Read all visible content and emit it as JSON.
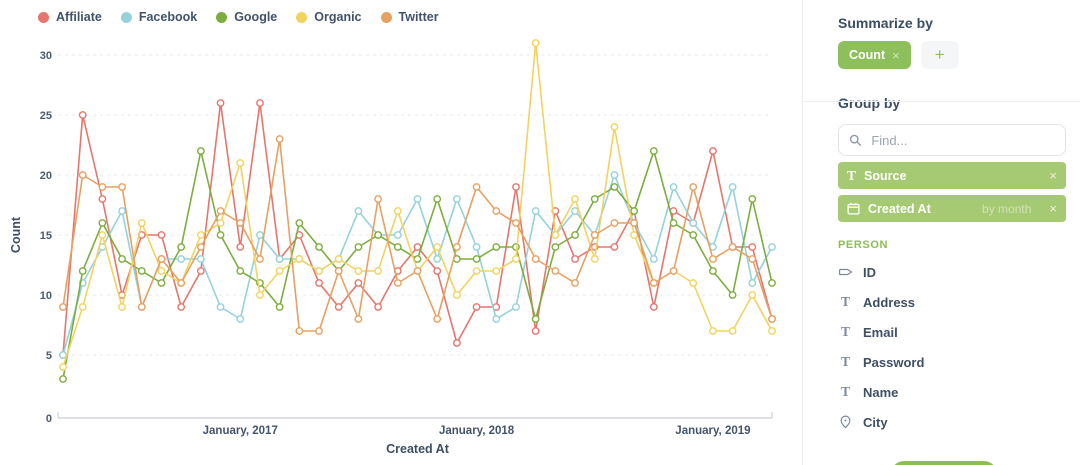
{
  "colors": {
    "accent_green": "#8dc05b",
    "row_green": "#a6c974",
    "navy": "#3e4f63",
    "grid": "#e8e8ea",
    "axis": "#c9ced6"
  },
  "legend": [
    {
      "label": "Affiliate",
      "color": "#e4776d"
    },
    {
      "label": "Facebook",
      "color": "#96d1dc"
    },
    {
      "label": "Google",
      "color": "#7cad3e"
    },
    {
      "label": "Organic",
      "color": "#f2d360"
    },
    {
      "label": "Twitter",
      "color": "#e5a163"
    }
  ],
  "chart_data": {
    "type": "line",
    "title": "",
    "xlabel": "Created At",
    "ylabel": "Count",
    "ylim": [
      0,
      32
    ],
    "yticks": [
      0,
      5,
      10,
      15,
      20,
      25,
      30
    ],
    "grid": "dashed-horizontal",
    "legend_position": "top-left",
    "marker": "open-circle",
    "x": [
      "Apr 2016",
      "May 2016",
      "Jun 2016",
      "Jul 2016",
      "Aug 2016",
      "Sep 2016",
      "Oct 2016",
      "Nov 2016",
      "Dec 2016",
      "Jan 2017",
      "Feb 2017",
      "Mar 2017",
      "Apr 2017",
      "May 2017",
      "Jun 2017",
      "Jul 2017",
      "Aug 2017",
      "Sep 2017",
      "Oct 2017",
      "Nov 2017",
      "Dec 2017",
      "Jan 2018",
      "Feb 2018",
      "Mar 2018",
      "Apr 2018",
      "May 2018",
      "Jun 2018",
      "Jul 2018",
      "Aug 2018",
      "Sep 2018",
      "Oct 2018",
      "Nov 2018",
      "Dec 2018",
      "Jan 2019",
      "Feb 2019",
      "Mar 2019",
      "Apr 2019"
    ],
    "x_ticks": [
      {
        "index": 9,
        "label": "January, 2017"
      },
      {
        "index": 21,
        "label": "January, 2018"
      },
      {
        "index": 33,
        "label": "January, 2019"
      }
    ],
    "series": [
      {
        "name": "Affiliate",
        "color": "#e4776d",
        "values": [
          5,
          25,
          18,
          10,
          15,
          15,
          9,
          12,
          26,
          14,
          26,
          13,
          15,
          11,
          9,
          11,
          9,
          12,
          14,
          12,
          6,
          9,
          9,
          19,
          7,
          17,
          13,
          14,
          14,
          17,
          9,
          17,
          16,
          22,
          14,
          14,
          8
        ]
      },
      {
        "name": "Facebook",
        "color": "#96d1dc",
        "values": [
          5,
          11,
          14,
          17,
          9,
          13,
          13,
          13,
          9,
          8,
          15,
          13,
          13,
          12,
          13,
          17,
          15,
          15,
          18,
          13,
          18,
          14,
          8,
          9,
          17,
          15,
          17,
          15,
          20,
          16,
          13,
          19,
          16,
          14,
          19,
          11,
          14
        ]
      },
      {
        "name": "Google",
        "color": "#7cad3e",
        "values": [
          3,
          12,
          16,
          13,
          12,
          11,
          14,
          22,
          15,
          12,
          11,
          9,
          16,
          14,
          12,
          14,
          15,
          14,
          13,
          18,
          13,
          13,
          14,
          14,
          8,
          14,
          15,
          18,
          19,
          17,
          22,
          16,
          15,
          12,
          10,
          18,
          11
        ]
      },
      {
        "name": "Organic",
        "color": "#f2d360",
        "values": [
          4,
          9,
          15,
          9,
          16,
          12,
          11,
          15,
          16,
          21,
          10,
          12,
          13,
          12,
          13,
          12,
          12,
          17,
          12,
          14,
          10,
          12,
          12,
          13,
          31,
          15,
          18,
          13,
          24,
          15,
          11,
          12,
          11,
          7,
          7,
          10,
          7
        ]
      },
      {
        "name": "Twitter",
        "color": "#e5a163",
        "values": [
          9,
          20,
          19,
          19,
          9,
          13,
          11,
          14,
          17,
          16,
          13,
          23,
          7,
          7,
          12,
          8,
          18,
          11,
          12,
          8,
          14,
          19,
          17,
          16,
          13,
          12,
          11,
          15,
          16,
          16,
          11,
          12,
          19,
          13,
          14,
          13,
          8
        ]
      }
    ]
  },
  "sidebar": {
    "summarize": {
      "heading": "Summarize by",
      "tags": [
        {
          "label": "Count",
          "remove_icon": "×"
        }
      ],
      "add_label": "+"
    },
    "group": {
      "heading": "Group by",
      "search_placeholder": "Find...",
      "selected": [
        {
          "icon": "text-icon",
          "label": "Source",
          "remove_icon": "×"
        },
        {
          "icon": "calendar-icon",
          "label": "Created At",
          "modifier": "by month",
          "remove_icon": "×"
        }
      ],
      "section_label": "PERSON",
      "fields": [
        {
          "icon": "tag-icon",
          "label": "ID"
        },
        {
          "icon": "text-icon",
          "label": "Address"
        },
        {
          "icon": "text-icon",
          "label": "Email"
        },
        {
          "icon": "text-icon",
          "label": "Password"
        },
        {
          "icon": "text-icon",
          "label": "Name"
        },
        {
          "icon": "pin-icon",
          "label": "City"
        }
      ]
    }
  }
}
